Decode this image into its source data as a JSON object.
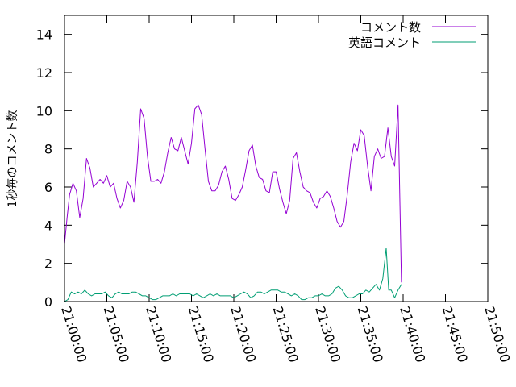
{
  "chart_data": {
    "type": "line",
    "title": "",
    "ylabel": "1秒毎のコメント数",
    "xlabel": "",
    "ylim": [
      0,
      15
    ],
    "yticks": [
      0,
      2,
      4,
      6,
      8,
      10,
      12,
      14
    ],
    "xlim": [
      0,
      50
    ],
    "xticks": [
      0,
      5,
      10,
      15,
      20,
      25,
      30,
      35,
      40,
      45,
      50
    ],
    "xtick_labels": [
      "21:00:00",
      "21:05:00",
      "21:10:00",
      "21:15:00",
      "21:20:00",
      "21:25:00",
      "21:30:00",
      "21:35:00",
      "21:40:00",
      "21:45:00",
      "21:50:00"
    ],
    "legend_position": "top-right",
    "grid": false,
    "series": [
      {
        "name": "コメント数",
        "color": "#9400d3",
        "points": [
          [
            0.0,
            3.0
          ],
          [
            0.3,
            4.4
          ],
          [
            0.6,
            5.6
          ],
          [
            1.0,
            6.2
          ],
          [
            1.4,
            5.8
          ],
          [
            1.8,
            4.4
          ],
          [
            2.2,
            5.4
          ],
          [
            2.6,
            7.5
          ],
          [
            3.0,
            7.0
          ],
          [
            3.4,
            6.0
          ],
          [
            3.8,
            6.2
          ],
          [
            4.2,
            6.4
          ],
          [
            4.6,
            6.2
          ],
          [
            5.0,
            6.6
          ],
          [
            5.4,
            6.0
          ],
          [
            5.8,
            6.2
          ],
          [
            6.2,
            5.4
          ],
          [
            6.6,
            4.9
          ],
          [
            7.0,
            5.3
          ],
          [
            7.4,
            6.3
          ],
          [
            7.8,
            6.0
          ],
          [
            8.2,
            5.2
          ],
          [
            8.6,
            7.3
          ],
          [
            9.0,
            10.1
          ],
          [
            9.4,
            9.6
          ],
          [
            9.8,
            7.6
          ],
          [
            10.2,
            6.3
          ],
          [
            10.6,
            6.3
          ],
          [
            11.0,
            6.4
          ],
          [
            11.4,
            6.2
          ],
          [
            11.8,
            6.8
          ],
          [
            12.2,
            7.8
          ],
          [
            12.6,
            8.6
          ],
          [
            13.0,
            8.0
          ],
          [
            13.4,
            7.9
          ],
          [
            13.8,
            8.6
          ],
          [
            14.2,
            7.9
          ],
          [
            14.6,
            7.2
          ],
          [
            15.0,
            8.3
          ],
          [
            15.4,
            10.1
          ],
          [
            15.8,
            10.3
          ],
          [
            16.2,
            9.8
          ],
          [
            16.6,
            8.0
          ],
          [
            17.0,
            6.3
          ],
          [
            17.4,
            5.8
          ],
          [
            17.8,
            5.8
          ],
          [
            18.2,
            6.1
          ],
          [
            18.6,
            6.8
          ],
          [
            19.0,
            7.1
          ],
          [
            19.4,
            6.4
          ],
          [
            19.8,
            5.4
          ],
          [
            20.2,
            5.3
          ],
          [
            20.6,
            5.6
          ],
          [
            21.0,
            6.0
          ],
          [
            21.4,
            6.9
          ],
          [
            21.8,
            7.9
          ],
          [
            22.2,
            8.2
          ],
          [
            22.6,
            7.1
          ],
          [
            23.0,
            6.5
          ],
          [
            23.4,
            6.4
          ],
          [
            23.8,
            5.8
          ],
          [
            24.2,
            5.7
          ],
          [
            24.6,
            6.8
          ],
          [
            25.0,
            6.8
          ],
          [
            25.4,
            5.9
          ],
          [
            25.8,
            5.2
          ],
          [
            26.2,
            4.6
          ],
          [
            26.6,
            5.3
          ],
          [
            27.0,
            7.5
          ],
          [
            27.4,
            7.8
          ],
          [
            27.8,
            6.8
          ],
          [
            28.2,
            6.0
          ],
          [
            28.6,
            5.8
          ],
          [
            29.0,
            5.7
          ],
          [
            29.4,
            5.2
          ],
          [
            29.8,
            4.9
          ],
          [
            30.2,
            5.4
          ],
          [
            30.6,
            5.5
          ],
          [
            31.0,
            5.8
          ],
          [
            31.4,
            5.5
          ],
          [
            31.8,
            4.9
          ],
          [
            32.2,
            4.2
          ],
          [
            32.6,
            3.9
          ],
          [
            33.0,
            4.2
          ],
          [
            33.4,
            5.6
          ],
          [
            33.8,
            7.3
          ],
          [
            34.2,
            8.3
          ],
          [
            34.6,
            7.9
          ],
          [
            35.0,
            9.0
          ],
          [
            35.4,
            8.7
          ],
          [
            35.8,
            7.1
          ],
          [
            36.2,
            5.8
          ],
          [
            36.6,
            7.6
          ],
          [
            37.0,
            8.0
          ],
          [
            37.4,
            7.5
          ],
          [
            37.8,
            7.6
          ],
          [
            38.2,
            9.1
          ],
          [
            38.6,
            7.6
          ],
          [
            39.0,
            7.1
          ],
          [
            39.4,
            10.3
          ],
          [
            39.8,
            1.0
          ]
        ]
      },
      {
        "name": "英語コメント",
        "color": "#009e73",
        "points": [
          [
            0.0,
            0.0
          ],
          [
            0.4,
            0.1
          ],
          [
            0.8,
            0.5
          ],
          [
            1.2,
            0.4
          ],
          [
            1.6,
            0.5
          ],
          [
            2.0,
            0.4
          ],
          [
            2.4,
            0.6
          ],
          [
            2.8,
            0.4
          ],
          [
            3.2,
            0.3
          ],
          [
            3.6,
            0.4
          ],
          [
            4.0,
            0.4
          ],
          [
            4.4,
            0.4
          ],
          [
            4.8,
            0.5
          ],
          [
            5.2,
            0.3
          ],
          [
            5.6,
            0.2
          ],
          [
            6.0,
            0.4
          ],
          [
            6.4,
            0.5
          ],
          [
            6.8,
            0.4
          ],
          [
            7.2,
            0.4
          ],
          [
            7.6,
            0.4
          ],
          [
            8.0,
            0.5
          ],
          [
            8.4,
            0.5
          ],
          [
            8.8,
            0.4
          ],
          [
            9.2,
            0.3
          ],
          [
            9.6,
            0.3
          ],
          [
            10.0,
            0.2
          ],
          [
            10.4,
            0.1
          ],
          [
            10.8,
            0.1
          ],
          [
            11.2,
            0.2
          ],
          [
            11.6,
            0.3
          ],
          [
            12.0,
            0.3
          ],
          [
            12.4,
            0.3
          ],
          [
            12.8,
            0.4
          ],
          [
            13.2,
            0.3
          ],
          [
            13.6,
            0.4
          ],
          [
            14.0,
            0.4
          ],
          [
            14.4,
            0.4
          ],
          [
            14.8,
            0.4
          ],
          [
            15.2,
            0.3
          ],
          [
            15.6,
            0.4
          ],
          [
            16.0,
            0.3
          ],
          [
            16.4,
            0.2
          ],
          [
            16.8,
            0.3
          ],
          [
            17.2,
            0.4
          ],
          [
            17.6,
            0.3
          ],
          [
            18.0,
            0.4
          ],
          [
            18.4,
            0.3
          ],
          [
            18.8,
            0.3
          ],
          [
            19.2,
            0.3
          ],
          [
            19.6,
            0.3
          ],
          [
            20.0,
            0.2
          ],
          [
            20.4,
            0.3
          ],
          [
            20.8,
            0.4
          ],
          [
            21.2,
            0.5
          ],
          [
            21.6,
            0.4
          ],
          [
            22.0,
            0.2
          ],
          [
            22.4,
            0.3
          ],
          [
            22.8,
            0.5
          ],
          [
            23.2,
            0.5
          ],
          [
            23.6,
            0.4
          ],
          [
            24.0,
            0.5
          ],
          [
            24.4,
            0.6
          ],
          [
            24.8,
            0.6
          ],
          [
            25.2,
            0.6
          ],
          [
            25.6,
            0.5
          ],
          [
            26.0,
            0.5
          ],
          [
            26.4,
            0.4
          ],
          [
            26.8,
            0.3
          ],
          [
            27.2,
            0.4
          ],
          [
            27.6,
            0.3
          ],
          [
            28.0,
            0.1
          ],
          [
            28.4,
            0.1
          ],
          [
            28.8,
            0.2
          ],
          [
            29.2,
            0.2
          ],
          [
            29.6,
            0.3
          ],
          [
            30.0,
            0.3
          ],
          [
            30.4,
            0.4
          ],
          [
            30.8,
            0.3
          ],
          [
            31.2,
            0.3
          ],
          [
            31.6,
            0.4
          ],
          [
            32.0,
            0.7
          ],
          [
            32.4,
            0.8
          ],
          [
            32.8,
            0.6
          ],
          [
            33.2,
            0.3
          ],
          [
            33.6,
            0.2
          ],
          [
            34.0,
            0.2
          ],
          [
            34.4,
            0.3
          ],
          [
            34.8,
            0.4
          ],
          [
            35.2,
            0.4
          ],
          [
            35.6,
            0.6
          ],
          [
            36.0,
            0.5
          ],
          [
            36.4,
            0.7
          ],
          [
            36.8,
            0.9
          ],
          [
            37.2,
            0.6
          ],
          [
            37.6,
            1.2
          ],
          [
            38.0,
            2.8
          ],
          [
            38.3,
            0.6
          ],
          [
            38.6,
            0.6
          ],
          [
            39.0,
            0.2
          ],
          [
            39.4,
            0.6
          ],
          [
            39.8,
            0.9
          ]
        ]
      }
    ]
  }
}
